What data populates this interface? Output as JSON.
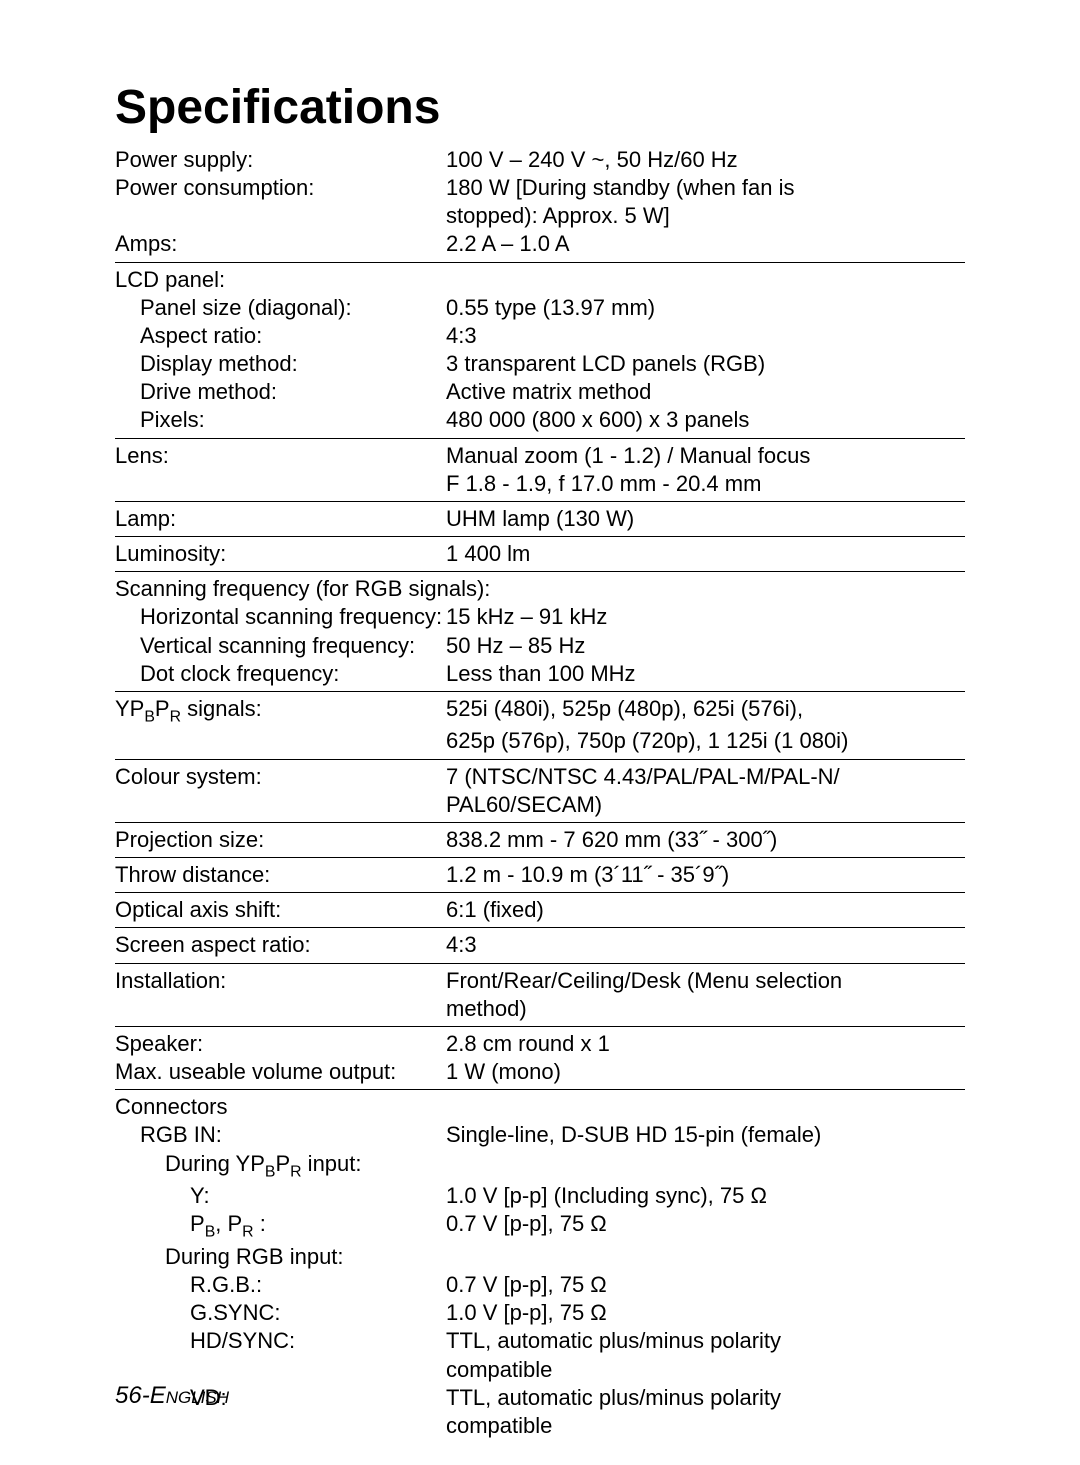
{
  "title": "Specifications",
  "power_supply": {
    "label": "Power supply:",
    "value": "100 V – 240 V ~, 50 Hz/60 Hz"
  },
  "power_consumption": {
    "label": "Power consumption:",
    "value1": "180 W [During standby (when fan is",
    "value2": "stopped): Approx. 5 W]"
  },
  "amps": {
    "label": "Amps:",
    "value": "2.2 A – 1.0 A"
  },
  "lcd_panel": {
    "label": "LCD panel:",
    "panel_size": {
      "label": "Panel size (diagonal):",
      "value": "0.55 type (13.97 mm)"
    },
    "aspect_ratio": {
      "label": "Aspect ratio:",
      "value": "4:3"
    },
    "display_method": {
      "label": "Display method:",
      "value": "3 transparent LCD panels (RGB)"
    },
    "drive_method": {
      "label": "Drive method:",
      "value": "Active matrix method"
    },
    "pixels": {
      "label": "Pixels:",
      "value": "480 000 (800 x 600) x 3 panels"
    }
  },
  "lens": {
    "label": "Lens:",
    "value1": "Manual zoom (1 - 1.2) / Manual focus",
    "value2": "F 1.8 - 1.9, f 17.0 mm - 20.4 mm"
  },
  "lamp": {
    "label": "Lamp:",
    "value": "UHM lamp (130 W)"
  },
  "luminosity": {
    "label": "Luminosity:",
    "value": "1 400 lm"
  },
  "scanning": {
    "label": "Scanning frequency (for RGB signals):",
    "horizontal": {
      "label": "Horizontal scanning frequency:",
      "value": "15 kHz – 91 kHz"
    },
    "vertical": {
      "label": "Vertical scanning frequency:",
      "value": "50 Hz – 85 Hz"
    },
    "dotclock": {
      "label": "Dot clock frequency:",
      "value": "Less than 100 MHz"
    }
  },
  "ypbpr": {
    "label_pre": "YP",
    "label_b": "B",
    "label_mid": "P",
    "label_r": "R",
    "label_post": " signals:",
    "value1": "525i (480i), 525p (480p), 625i (576i),",
    "value2": "625p (576p), 750p (720p), 1 125i (1 080i)"
  },
  "colour": {
    "label": "Colour system:",
    "value1": "7 (NTSC/NTSC 4.43/PAL/PAL-M/PAL-N/",
    "value2": "PAL60/SECAM)"
  },
  "projection": {
    "label": "Projection size:",
    "value": "838.2 mm - 7 620 mm (33˝ - 300˝)"
  },
  "throw": {
    "label": "Throw distance:",
    "value": "1.2 m - 10.9 m (3´11˝ - 35´9˝)"
  },
  "optical": {
    "label": "Optical axis shift:",
    "value": "6:1 (fixed)"
  },
  "screen_aspect": {
    "label": "Screen aspect ratio:",
    "value": "4:3"
  },
  "installation": {
    "label": "Installation:",
    "value1": "Front/Rear/Ceiling/Desk (Menu selection",
    "value2": "method)"
  },
  "speaker": {
    "label": "Speaker:",
    "value": "2.8 cm round x 1"
  },
  "max_volume": {
    "label": "Max. useable volume output:",
    "value": "1 W (mono)"
  },
  "connectors": {
    "label": "Connectors",
    "rgbin": {
      "label": "RGB IN:",
      "value": "Single-line, D-SUB HD 15-pin (female)"
    },
    "during_ypbpr": {
      "pre": "During YP",
      "b": "B",
      "mid": "P",
      "r": "R",
      "post": " input:"
    },
    "y": {
      "label": "Y:",
      "value": "1.0 V [p-p] (Including sync), 75 Ω"
    },
    "pbpr": {
      "p1": "P",
      "b": "B",
      "comma": ", P",
      "r": "R",
      "colon": " :",
      "value": "0.7 V [p-p], 75 Ω"
    },
    "during_rgb": {
      "label": "During RGB input:"
    },
    "rgb": {
      "label": "R.G.B.:",
      "value": "0.7 V [p-p], 75 Ω"
    },
    "gsync": {
      "label": "G.SYNC:",
      "value": "1.0 V [p-p], 75 Ω"
    },
    "hdsync": {
      "label": "HD/SYNC:",
      "value1": "TTL, automatic plus/minus polarity",
      "value2": "compatible"
    },
    "vd": {
      "label": "VD:",
      "value1": "TTL, automatic plus/minus polarity",
      "value2": "compatible"
    }
  },
  "footer": {
    "num": "56-",
    "eng": "English"
  }
}
